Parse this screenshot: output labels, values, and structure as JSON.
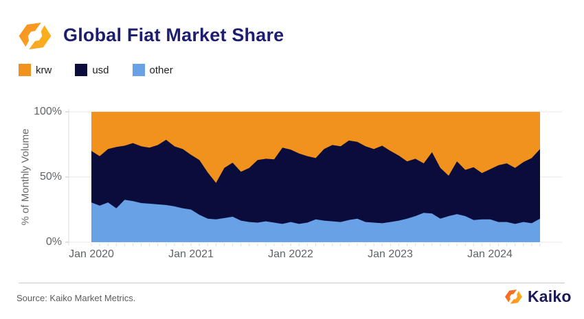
{
  "header": {
    "title": "Global Fiat Market Share",
    "logo_icon": "kaiko-mark-icon"
  },
  "legend": [
    {
      "label": "krw",
      "color": "#f0921d"
    },
    {
      "label": "usd",
      "color": "#0a0d3c"
    },
    {
      "label": "other",
      "color": "#68a1e6"
    }
  ],
  "chart_data": {
    "type": "area",
    "stacked": true,
    "title": "Global Fiat Market Share",
    "xlabel": "",
    "ylabel": "% of Monthly Volume",
    "ylim": [
      0,
      100
    ],
    "yticks": [
      "0%",
      "50%",
      "100%"
    ],
    "xticks": [
      "Jan 2020",
      "Jan 2021",
      "Jan 2022",
      "Jan 2023",
      "Jan 2024"
    ],
    "grid": "horizontal",
    "legend_position": "top-left",
    "x": [
      "2020-01",
      "2020-02",
      "2020-03",
      "2020-04",
      "2020-05",
      "2020-06",
      "2020-07",
      "2020-08",
      "2020-09",
      "2020-10",
      "2020-11",
      "2020-12",
      "2021-01",
      "2021-02",
      "2021-03",
      "2021-04",
      "2021-05",
      "2021-06",
      "2021-07",
      "2021-08",
      "2021-09",
      "2021-10",
      "2021-11",
      "2021-12",
      "2022-01",
      "2022-02",
      "2022-03",
      "2022-04",
      "2022-05",
      "2022-06",
      "2022-07",
      "2022-08",
      "2022-09",
      "2022-10",
      "2022-11",
      "2022-12",
      "2023-01",
      "2023-02",
      "2023-03",
      "2023-04",
      "2023-05",
      "2023-06",
      "2023-07",
      "2023-08",
      "2023-09",
      "2023-10",
      "2023-11",
      "2023-12",
      "2024-01",
      "2024-02",
      "2024-03",
      "2024-04",
      "2024-05",
      "2024-06",
      "2024-07"
    ],
    "series": [
      {
        "name": "other",
        "color": "#68a1e6",
        "values": [
          30.5,
          28,
          30.5,
          26,
          32.5,
          31.5,
          30,
          29.5,
          29,
          28.5,
          27.5,
          26,
          25,
          21,
          18,
          17.5,
          18.5,
          19.5,
          16.5,
          15.5,
          15,
          16,
          15,
          14,
          15.5,
          14,
          15,
          17.5,
          16.5,
          16,
          15.5,
          17,
          18,
          15.5,
          15,
          14.5,
          15.5,
          16.5,
          18,
          20,
          22.5,
          22,
          18,
          20,
          21.5,
          20,
          17,
          17.5,
          17.5,
          15.5,
          15.5,
          14,
          15.5,
          14.5,
          18
        ]
      },
      {
        "name": "usd",
        "color": "#0a0d3c",
        "values": [
          39.5,
          38,
          41,
          47,
          41.5,
          44.5,
          43.5,
          43,
          45.5,
          50,
          46,
          45.5,
          42,
          42,
          35.5,
          28,
          38.5,
          41.5,
          37.5,
          41.5,
          48,
          48,
          48.5,
          58.5,
          55.5,
          54,
          51,
          47,
          55,
          58.5,
          58,
          61,
          59,
          58,
          56.5,
          59.5,
          54.5,
          50,
          44,
          44,
          38,
          47,
          39,
          31,
          40.5,
          35.5,
          40.5,
          35.5,
          38.5,
          43.5,
          45,
          43,
          46,
          50,
          53.5
        ]
      },
      {
        "name": "krw",
        "color": "#f0921d",
        "values": [
          30,
          34,
          28.5,
          27,
          26,
          24,
          26.5,
          27.5,
          25.5,
          21.5,
          26.5,
          28.5,
          33,
          37,
          46.5,
          54.5,
          43,
          39,
          46,
          43,
          37,
          36,
          36.5,
          27.5,
          29,
          32,
          34,
          35.5,
          28.5,
          25.5,
          26.5,
          22,
          23,
          26.5,
          28.5,
          26,
          30,
          33.5,
          38,
          36,
          39.5,
          31,
          43,
          49,
          38,
          44.5,
          42.5,
          47,
          44,
          41,
          39.5,
          43,
          38.5,
          35.5,
          28.5
        ]
      }
    ]
  },
  "footer": {
    "source": "Source: Kaiko Market Metrics.",
    "brand": "Kaiko"
  }
}
